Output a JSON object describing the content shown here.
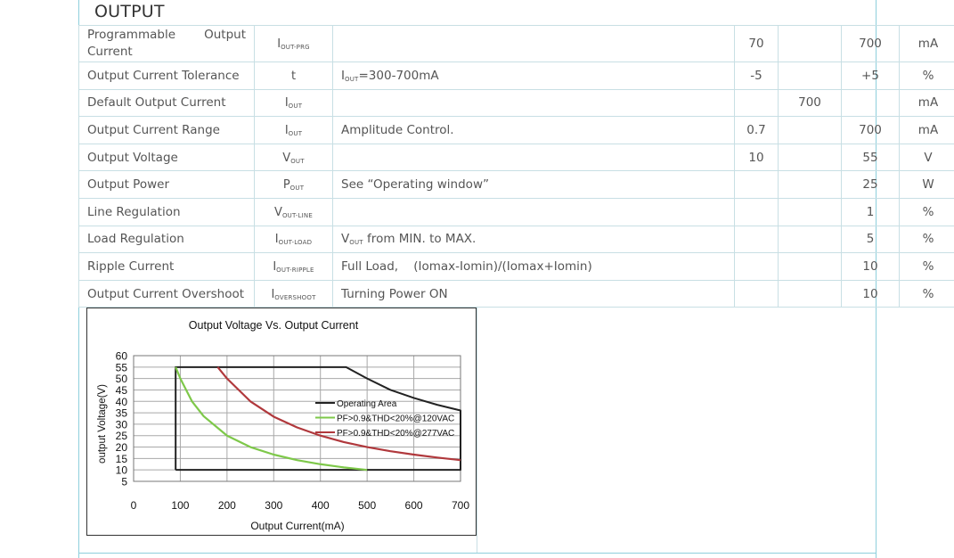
{
  "section": {
    "title": "OUTPUT"
  },
  "rows": [
    {
      "param": "Programmable Output Current",
      "param_parts": [
        "Programmable",
        "Output",
        "Current"
      ],
      "sym": "I",
      "sub": "OUT-PRG",
      "cond": "",
      "cond_sub": "",
      "cond_rest": "",
      "min": "70",
      "typ": "",
      "max": "700",
      "unit": "mA"
    },
    {
      "param": "Output Current Tolerance",
      "sym": "t",
      "sub": "",
      "cond": "I",
      "cond_sub": "OUT",
      "cond_rest": "=300-700mA",
      "min": "-5",
      "typ": "",
      "max": "+5",
      "unit": "%"
    },
    {
      "param": "Default Output Current",
      "sym": "I",
      "sub": "OUT",
      "cond": "",
      "cond_sub": "",
      "cond_rest": "",
      "min": "",
      "typ": "700",
      "max": "",
      "unit": "mA"
    },
    {
      "param": "Output Current Range",
      "sym": "I",
      "sub": "OUT",
      "cond": "",
      "cond_sub": "",
      "cond_rest": "Amplitude Control.",
      "min": "0.7",
      "typ": "",
      "max": "700",
      "unit": "mA"
    },
    {
      "param": "Output Voltage",
      "sym": "V",
      "sub": "OUT",
      "cond": "",
      "cond_sub": "",
      "cond_rest": "",
      "min": "10",
      "typ": "",
      "max": "55",
      "unit": "V"
    },
    {
      "param": "Output Power",
      "sym": "P",
      "sub": "OUT",
      "cond": "",
      "cond_sub": "",
      "cond_rest": "See “Operating window”",
      "min": "",
      "typ": "",
      "max": "25",
      "unit": "W"
    },
    {
      "param": "Line Regulation",
      "sym": "V",
      "sub": "OUT-LINE",
      "cond": "",
      "cond_sub": "",
      "cond_rest": "",
      "min": "",
      "typ": "",
      "max": "1",
      "unit": "%"
    },
    {
      "param": "Load Regulation",
      "sym": "I",
      "sub": "OUT-LOAD",
      "cond": "V",
      "cond_sub": "OUT",
      "cond_rest": " from MIN. to MAX.",
      "min": "",
      "typ": "",
      "max": "5",
      "unit": "%"
    },
    {
      "param": "Ripple Current",
      "sym": "I",
      "sub": "OUT-RIPPLE",
      "cond": "",
      "cond_sub": "",
      "cond_rest": "Full Load,    (Iomax-Iomin)/(Iomax+Iomin)",
      "min": "",
      "typ": "",
      "max": "10",
      "unit": "%"
    },
    {
      "param": "Output Current Overshoot",
      "sym": "I",
      "sub": "OVERSHOOT",
      "cond": "",
      "cond_sub": "",
      "cond_rest": "Turning Power ON",
      "min": "",
      "typ": "",
      "max": "10",
      "unit": "%"
    }
  ],
  "chart_data": {
    "type": "line",
    "title": "Output Voltage Vs. Output Current",
    "xlabel": "Output Current(mA)",
    "ylabel": "output Voltage(V)",
    "xlim": [
      0,
      700
    ],
    "ylim": [
      5,
      60
    ],
    "xticks": [
      "0",
      "100",
      "200",
      "300",
      "400",
      "500",
      "600",
      "700"
    ],
    "yticks": [
      "60",
      "55",
      "50",
      "45",
      "40",
      "35",
      "30",
      "25",
      "20",
      "15",
      "10",
      "5"
    ],
    "grid": true,
    "legend_position": "center-right",
    "series": [
      {
        "name": "Operating Area",
        "color": "#222222",
        "x": [
          90,
          90,
          455,
          500,
          550,
          600,
          650,
          700,
          700,
          90
        ],
        "y": [
          10,
          55,
          55,
          50,
          45,
          41.5,
          38.5,
          36,
          10,
          10
        ]
      },
      {
        "name": "PF>0.9&THD<20%@120VAC",
        "color": "#7ec84a",
        "x": [
          90,
          100,
          125,
          150,
          200,
          250,
          300,
          350,
          400,
          450,
          500
        ],
        "y": [
          55,
          50,
          40,
          33.5,
          25,
          20,
          16.7,
          14.3,
          12.5,
          11.1,
          10
        ]
      },
      {
        "name": "PF>0.9&THD<20%@277VAC",
        "color": "#b0383c",
        "x": [
          180,
          200,
          250,
          300,
          350,
          400,
          450,
          500,
          550,
          600,
          650,
          700
        ],
        "y": [
          55,
          50,
          40,
          33.3,
          28.6,
          25,
          22.2,
          20,
          18.2,
          16.7,
          15.4,
          14.3
        ]
      }
    ]
  }
}
